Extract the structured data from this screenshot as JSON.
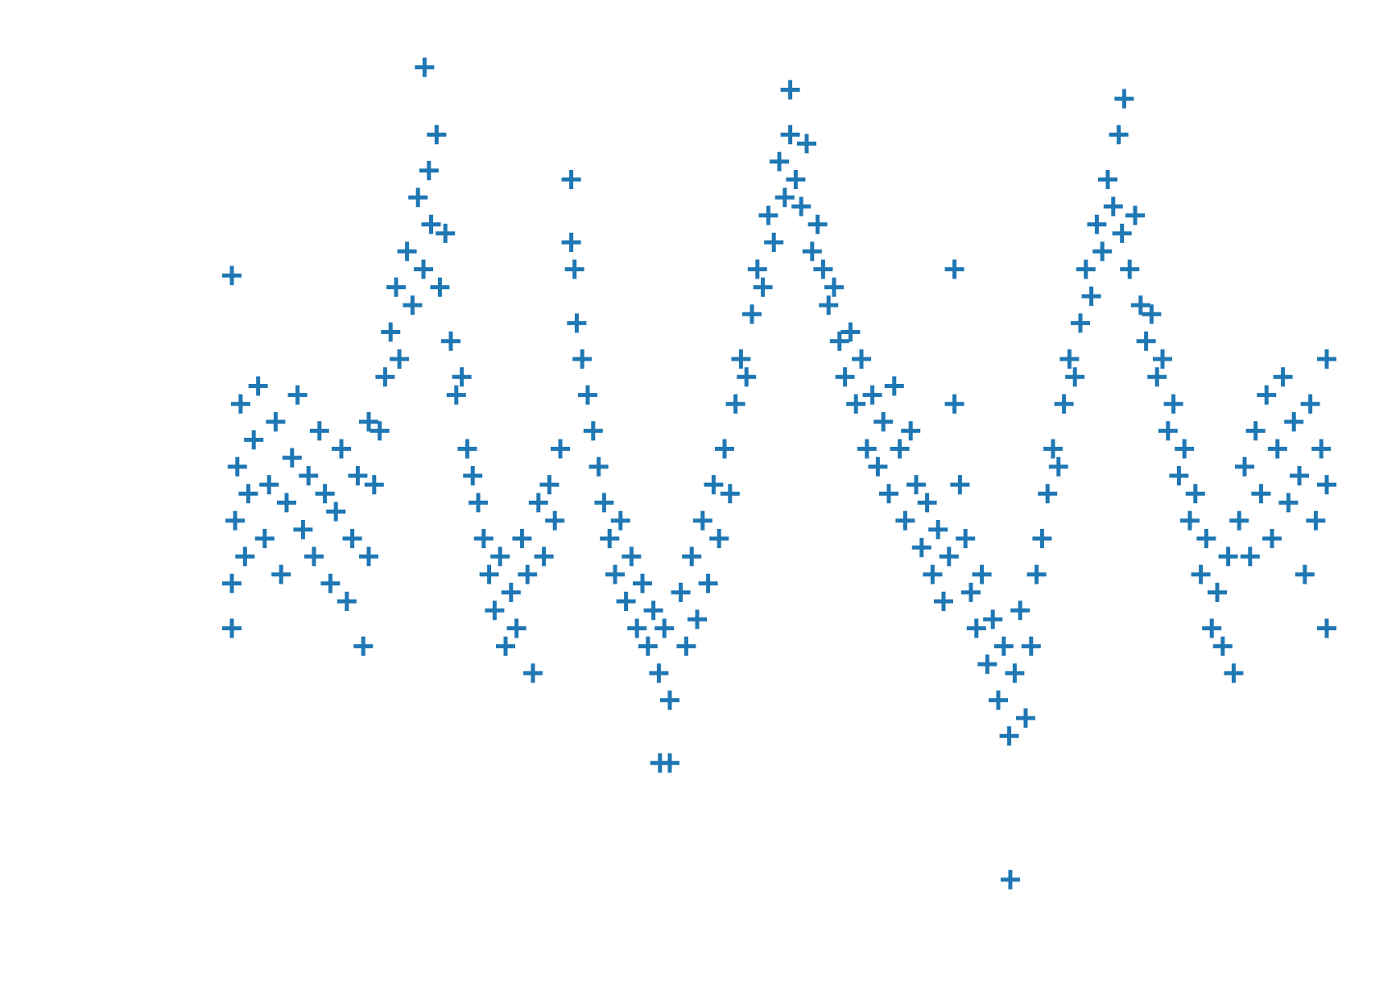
{
  "chart_data": {
    "type": "scatter",
    "marker": "+",
    "color": "#1f77b4",
    "xlim": [
      0,
      100
    ],
    "ylim": [
      0,
      100
    ],
    "x": [
      0,
      0,
      0.3,
      0.5,
      0.8,
      1.2,
      1.5,
      2,
      2.4,
      3,
      3.4,
      4,
      4.5,
      5,
      5.5,
      6,
      6.5,
      7,
      7.5,
      8,
      8.5,
      9,
      9.5,
      10,
      10.5,
      11,
      11.5,
      12,
      12.5,
      12.5,
      13,
      13.5,
      14,
      14.5,
      15,
      15.3,
      16,
      16.5,
      17,
      17.5,
      18,
      18.2,
      18.7,
      19,
      19.5,
      20,
      20.5,
      21,
      21.5,
      22,
      22.5,
      23,
      23.5,
      24,
      24.5,
      25,
      25.5,
      26,
      26.5,
      27,
      27.5,
      28,
      28.5,
      29,
      29.5,
      30,
      31,
      31,
      31.3,
      31.5,
      32,
      32.5,
      33,
      33.5,
      34,
      34.5,
      35,
      35.5,
      36,
      36.5,
      37,
      37.5,
      38,
      38.5,
      39,
      39.5,
      40,
      40,
      41,
      41.5,
      42,
      42.5,
      43,
      43.5,
      44,
      44.5,
      45,
      45.5,
      46,
      46.5,
      47,
      47.5,
      48,
      48.5,
      49,
      49.5,
      50,
      50.5,
      51,
      51,
      51.5,
      52,
      52.5,
      53,
      53.5,
      54,
      54.5,
      55,
      55.5,
      56,
      56.5,
      57,
      57.5,
      58,
      58.5,
      59,
      59.5,
      60,
      60.5,
      61,
      61.5,
      62,
      62.5,
      63,
      63.5,
      64,
      64.5,
      65,
      65.5,
      66,
      66,
      66.5,
      67,
      67.5,
      68,
      68.5,
      69,
      69.5,
      70,
      70.5,
      71,
      71.1,
      71.5,
      72,
      72.5,
      73,
      73.5,
      74,
      74.5,
      75,
      75.5,
      76,
      76.5,
      77,
      77.5,
      78,
      78.5,
      79,
      79.5,
      80,
      80.5,
      81,
      81.3,
      81.5,
      82,
      82.5,
      83,
      83.5,
      84,
      84.5,
      85,
      85.5,
      86,
      86.5,
      87,
      87.5,
      88,
      88.5,
      89,
      89.5,
      90,
      90.5,
      91,
      91.5,
      92,
      92.5,
      93,
      93.5,
      94,
      94.5,
      95,
      95.5,
      96,
      96.5,
      97,
      97.5,
      98,
      98.5,
      99,
      99.5,
      100,
      100,
      100,
      17.6,
      0,
      39.1
    ],
    "values": [
      30,
      35,
      42,
      48,
      55,
      38,
      45,
      51,
      57,
      40,
      46,
      53,
      36,
      44,
      49,
      56,
      41,
      47,
      38,
      52,
      45,
      35,
      43,
      50,
      33,
      40,
      47,
      28,
      38,
      53,
      46,
      52,
      58,
      63,
      68,
      60,
      72,
      66,
      78,
      70,
      81,
      75,
      85,
      68,
      74,
      62,
      56,
      58,
      50,
      47,
      44,
      40,
      36,
      32,
      38,
      28,
      34,
      30,
      40,
      36,
      25,
      44,
      38,
      46,
      42,
      50,
      80,
      73,
      70,
      64,
      60,
      56,
      52,
      48,
      44,
      40,
      36,
      42,
      33,
      38,
      30,
      35,
      28,
      32,
      25,
      30,
      22,
      15,
      34,
      28,
      38,
      31,
      42,
      35,
      46,
      40,
      50,
      45,
      55,
      60,
      58,
      65,
      70,
      68,
      76,
      73,
      82,
      78,
      90,
      85,
      80,
      77,
      84,
      72,
      75,
      70,
      66,
      68,
      62,
      58,
      63,
      55,
      60,
      50,
      56,
      48,
      53,
      45,
      57,
      50,
      42,
      52,
      46,
      39,
      44,
      36,
      41,
      33,
      38,
      70,
      55,
      46,
      40,
      34,
      30,
      36,
      26,
      31,
      22,
      28,
      18,
      2,
      25,
      32,
      20,
      28,
      36,
      40,
      45,
      50,
      48,
      55,
      60,
      58,
      64,
      70,
      67,
      75,
      72,
      80,
      77,
      85,
      74,
      89,
      70,
      76,
      66,
      62,
      65,
      58,
      60,
      52,
      55,
      47,
      50,
      42,
      45,
      36,
      40,
      30,
      34,
      28,
      38,
      25,
      42,
      48,
      38,
      52,
      45,
      56,
      40,
      50,
      58,
      44,
      53,
      47,
      36,
      55,
      42,
      50,
      30,
      46,
      60,
      92.5,
      69.3,
      15
    ]
  }
}
